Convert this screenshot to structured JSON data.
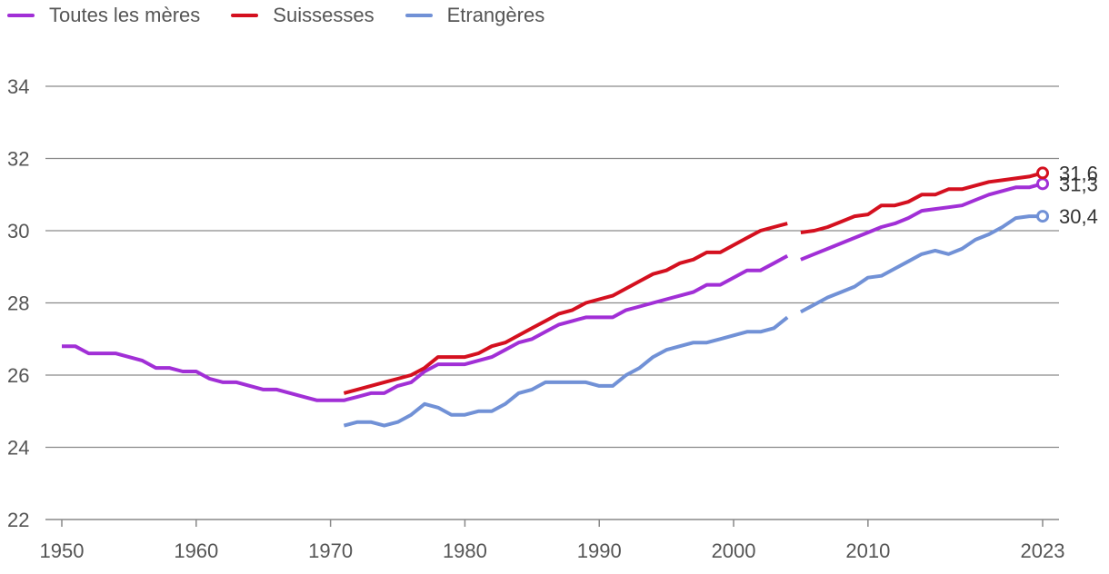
{
  "chart_data": {
    "type": "line",
    "title": "",
    "xlabel": "",
    "ylabel": "",
    "xlim": [
      1950,
      2023
    ],
    "ylim": [
      22,
      34
    ],
    "x_ticks": [
      "1950",
      "1960",
      "1970",
      "1980",
      "1990",
      "2000",
      "2010",
      "2023"
    ],
    "y_ticks": [
      "22",
      "24",
      "26",
      "28",
      "30",
      "32",
      "34"
    ],
    "legend_position": "top-left",
    "series": [
      {
        "name": "Toutes les mères",
        "color": "#a12fd6",
        "segments": [
          [
            [
              1950,
              26.8
            ],
            [
              1951,
              26.8
            ],
            [
              1952,
              26.6
            ],
            [
              1953,
              26.6
            ],
            [
              1954,
              26.6
            ],
            [
              1955,
              26.5
            ],
            [
              1956,
              26.4
            ],
            [
              1957,
              26.2
            ],
            [
              1958,
              26.2
            ],
            [
              1959,
              26.1
            ],
            [
              1960,
              26.1
            ],
            [
              1961,
              25.9
            ],
            [
              1962,
              25.8
            ],
            [
              1963,
              25.8
            ],
            [
              1964,
              25.7
            ],
            [
              1965,
              25.6
            ],
            [
              1966,
              25.6
            ],
            [
              1967,
              25.5
            ],
            [
              1968,
              25.4
            ],
            [
              1969,
              25.3
            ],
            [
              1970,
              25.3
            ],
            [
              1971,
              25.3
            ],
            [
              1972,
              25.4
            ],
            [
              1973,
              25.5
            ],
            [
              1974,
              25.5
            ],
            [
              1975,
              25.7
            ],
            [
              1976,
              25.8
            ],
            [
              1977,
              26.1
            ],
            [
              1978,
              26.3
            ],
            [
              1979,
              26.3
            ],
            [
              1980,
              26.3
            ],
            [
              1981,
              26.4
            ],
            [
              1982,
              26.5
            ],
            [
              1983,
              26.7
            ],
            [
              1984,
              26.9
            ],
            [
              1985,
              27.0
            ],
            [
              1986,
              27.2
            ],
            [
              1987,
              27.4
            ],
            [
              1988,
              27.5
            ],
            [
              1989,
              27.6
            ],
            [
              1990,
              27.6
            ],
            [
              1991,
              27.6
            ],
            [
              1992,
              27.8
            ],
            [
              1993,
              27.9
            ],
            [
              1994,
              28.0
            ],
            [
              1995,
              28.1
            ],
            [
              1996,
              28.2
            ],
            [
              1997,
              28.3
            ],
            [
              1998,
              28.5
            ],
            [
              1999,
              28.5
            ],
            [
              2000,
              28.7
            ],
            [
              2001,
              28.9
            ],
            [
              2002,
              28.9
            ],
            [
              2003,
              29.1
            ],
            [
              2004,
              29.3
            ]
          ],
          [
            [
              2005,
              29.2
            ],
            [
              2006,
              29.35
            ],
            [
              2007,
              29.5
            ],
            [
              2008,
              29.65
            ],
            [
              2009,
              29.8
            ],
            [
              2010,
              29.95
            ],
            [
              2011,
              30.1
            ],
            [
              2012,
              30.2
            ],
            [
              2013,
              30.35
            ],
            [
              2014,
              30.55
            ],
            [
              2015,
              30.6
            ],
            [
              2016,
              30.65
            ],
            [
              2017,
              30.7
            ],
            [
              2018,
              30.85
            ],
            [
              2019,
              31.0
            ],
            [
              2020,
              31.1
            ],
            [
              2021,
              31.2
            ],
            [
              2022,
              31.2
            ],
            [
              2023,
              31.3
            ]
          ]
        ],
        "end_label": "31,3"
      },
      {
        "name": "Suissesses",
        "color": "#d4101f",
        "segments": [
          [
            [
              1971,
              25.5
            ],
            [
              1972,
              25.6
            ],
            [
              1973,
              25.7
            ],
            [
              1974,
              25.8
            ],
            [
              1975,
              25.9
            ],
            [
              1976,
              26.0
            ],
            [
              1977,
              26.2
            ],
            [
              1978,
              26.5
            ],
            [
              1979,
              26.5
            ],
            [
              1980,
              26.5
            ],
            [
              1981,
              26.6
            ],
            [
              1982,
              26.8
            ],
            [
              1983,
              26.9
            ],
            [
              1984,
              27.1
            ],
            [
              1985,
              27.3
            ],
            [
              1986,
              27.5
            ],
            [
              1987,
              27.7
            ],
            [
              1988,
              27.8
            ],
            [
              1989,
              28.0
            ],
            [
              1990,
              28.1
            ],
            [
              1991,
              28.2
            ],
            [
              1992,
              28.4
            ],
            [
              1993,
              28.6
            ],
            [
              1994,
              28.8
            ],
            [
              1995,
              28.9
            ],
            [
              1996,
              29.1
            ],
            [
              1997,
              29.2
            ],
            [
              1998,
              29.4
            ],
            [
              1999,
              29.4
            ],
            [
              2000,
              29.6
            ],
            [
              2001,
              29.8
            ],
            [
              2002,
              30.0
            ],
            [
              2003,
              30.1
            ],
            [
              2004,
              30.2
            ]
          ],
          [
            [
              2005,
              29.95
            ],
            [
              2006,
              30.0
            ],
            [
              2007,
              30.1
            ],
            [
              2008,
              30.25
            ],
            [
              2009,
              30.4
            ],
            [
              2010,
              30.45
            ],
            [
              2011,
              30.7
            ],
            [
              2012,
              30.7
            ],
            [
              2013,
              30.8
            ],
            [
              2014,
              31.0
            ],
            [
              2015,
              31.0
            ],
            [
              2016,
              31.15
            ],
            [
              2017,
              31.15
            ],
            [
              2018,
              31.25
            ],
            [
              2019,
              31.35
            ],
            [
              2020,
              31.4
            ],
            [
              2021,
              31.45
            ],
            [
              2022,
              31.5
            ],
            [
              2023,
              31.6
            ]
          ]
        ],
        "end_label": "31,6"
      },
      {
        "name": "Etrangères",
        "color": "#7191d6",
        "segments": [
          [
            [
              1971,
              24.6
            ],
            [
              1972,
              24.7
            ],
            [
              1973,
              24.7
            ],
            [
              1974,
              24.6
            ],
            [
              1975,
              24.7
            ],
            [
              1976,
              24.9
            ],
            [
              1977,
              25.2
            ],
            [
              1978,
              25.1
            ],
            [
              1979,
              24.9
            ],
            [
              1980,
              24.9
            ],
            [
              1981,
              25.0
            ],
            [
              1982,
              25.0
            ],
            [
              1983,
              25.2
            ],
            [
              1984,
              25.5
            ],
            [
              1985,
              25.6
            ],
            [
              1986,
              25.8
            ],
            [
              1987,
              25.8
            ],
            [
              1988,
              25.8
            ],
            [
              1989,
              25.8
            ],
            [
              1990,
              25.7
            ],
            [
              1991,
              25.7
            ],
            [
              1992,
              26.0
            ],
            [
              1993,
              26.2
            ],
            [
              1994,
              26.5
            ],
            [
              1995,
              26.7
            ],
            [
              1996,
              26.8
            ],
            [
              1997,
              26.9
            ],
            [
              1998,
              26.9
            ],
            [
              1999,
              27.0
            ],
            [
              2000,
              27.1
            ],
            [
              2001,
              27.2
            ],
            [
              2002,
              27.2
            ],
            [
              2003,
              27.3
            ],
            [
              2004,
              27.6
            ]
          ],
          [
            [
              2005,
              27.75
            ],
            [
              2006,
              27.95
            ],
            [
              2007,
              28.15
            ],
            [
              2008,
              28.3
            ],
            [
              2009,
              28.45
            ],
            [
              2010,
              28.7
            ],
            [
              2011,
              28.75
            ],
            [
              2012,
              28.95
            ],
            [
              2013,
              29.15
            ],
            [
              2014,
              29.35
            ],
            [
              2015,
              29.45
            ],
            [
              2016,
              29.35
            ],
            [
              2017,
              29.5
            ],
            [
              2018,
              29.75
            ],
            [
              2019,
              29.9
            ],
            [
              2020,
              30.1
            ],
            [
              2021,
              30.35
            ],
            [
              2022,
              30.4
            ],
            [
              2023,
              30.4
            ]
          ]
        ],
        "end_label": "30,4"
      }
    ]
  }
}
